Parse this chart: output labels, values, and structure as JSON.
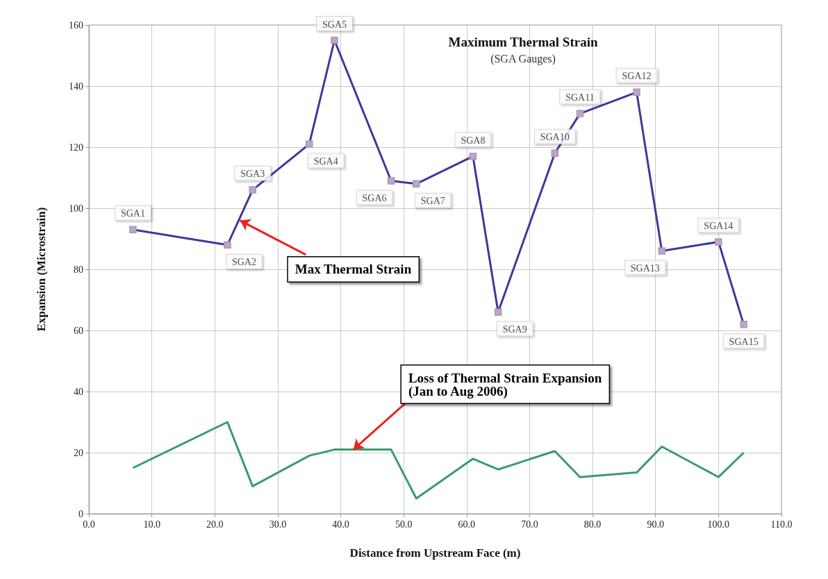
{
  "chart_data": {
    "type": "line",
    "title": "Maximum Thermal Strain",
    "subtitle": "(SGA Gauges)",
    "xlabel": "Distance from Upstream Face (m)",
    "ylabel": "Expansion (Microstrain)",
    "xlim": [
      0,
      110
    ],
    "xticks": [
      {
        "value": 0,
        "label": "0.0"
      },
      {
        "value": 10,
        "label": "10.0"
      },
      {
        "value": 20,
        "label": "20.0"
      },
      {
        "value": 30,
        "label": "30.0"
      },
      {
        "value": 40,
        "label": "40.0"
      },
      {
        "value": 50,
        "label": "50.0"
      },
      {
        "value": 60,
        "label": "60.0"
      },
      {
        "value": 70,
        "label": "70.0"
      },
      {
        "value": 80,
        "label": "80.0"
      },
      {
        "value": 90,
        "label": "90.0"
      },
      {
        "value": 100,
        "label": "100.0"
      },
      {
        "value": 110,
        "label": "110.0"
      }
    ],
    "ylim": [
      0,
      160
    ],
    "yticks": [
      0,
      20,
      40,
      60,
      80,
      100,
      120,
      140,
      160
    ],
    "grid": true,
    "series": [
      {
        "color": "#3a3a9a",
        "marker": "square",
        "x": [
          7,
          22,
          26,
          35,
          39,
          48,
          52,
          61,
          65,
          74,
          78,
          87,
          91,
          100,
          104
        ],
        "values": [
          93,
          88,
          106,
          121,
          155,
          109,
          108,
          117,
          66,
          118,
          131,
          138,
          86,
          89,
          62
        ]
      },
      {
        "color": "#3a9a6e",
        "marker": "none",
        "x": [
          7,
          22,
          26,
          35,
          39,
          48,
          52,
          61,
          65,
          74,
          78,
          87,
          91,
          100,
          104
        ],
        "values": [
          15,
          30,
          9,
          19,
          21,
          21,
          5,
          18,
          14.5,
          20.5,
          12,
          13.5,
          22,
          12,
          20
        ]
      }
    ],
    "annotations": [
      {
        "text": "SGA1",
        "x": 7,
        "y": 93
      },
      {
        "text": "SGA2",
        "x": 22,
        "y": 88
      },
      {
        "text": "SGA3",
        "x": 26,
        "y": 106
      },
      {
        "text": "SGA4",
        "x": 35,
        "y": 121
      },
      {
        "text": "SGA5",
        "x": 39,
        "y": 155
      },
      {
        "text": "SGA6",
        "x": 48,
        "y": 109
      },
      {
        "text": "SGA7",
        "x": 52,
        "y": 108
      },
      {
        "text": "SGA8",
        "x": 61,
        "y": 117
      },
      {
        "text": "SGA9",
        "x": 65,
        "y": 66
      },
      {
        "text": "SGA10",
        "x": 74,
        "y": 118
      },
      {
        "text": "SGA11",
        "x": 78,
        "y": 131
      },
      {
        "text": "SGA12",
        "x": 87,
        "y": 138
      },
      {
        "text": "SGA13",
        "x": 91,
        "y": 86
      },
      {
        "text": "SGA14",
        "x": 100,
        "y": 89
      },
      {
        "text": "SGA15",
        "x": 104,
        "y": 62
      },
      {
        "text": "Max Thermal Strain",
        "x": 24,
        "y": 96
      },
      {
        "text": "Loss of Thermal Strain Expansion\n(Jan to Aug 2006)",
        "x": 42,
        "y": 21
      }
    ]
  }
}
